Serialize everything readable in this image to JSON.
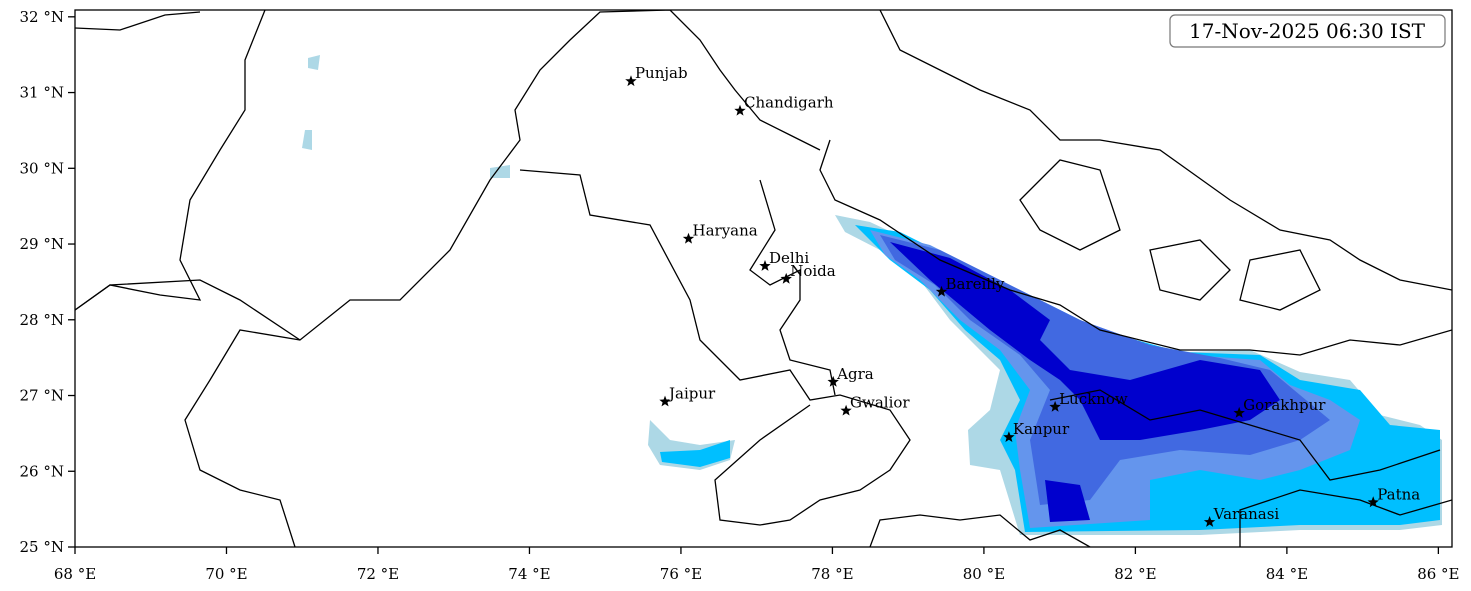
{
  "chart_data": {
    "type": "map",
    "title": "17-Nov-2025 06:30 IST",
    "xlim": [
      68,
      86.18
    ],
    "ylim": [
      25,
      32.09
    ],
    "xticks": [
      {
        "value": 68,
        "label": "68 °E"
      },
      {
        "value": 70,
        "label": "70 °E"
      },
      {
        "value": 72,
        "label": "72 °E"
      },
      {
        "value": 74,
        "label": "74 °E"
      },
      {
        "value": 76,
        "label": "76 °E"
      },
      {
        "value": 78,
        "label": "78 °E"
      },
      {
        "value": 80,
        "label": "80 °E"
      },
      {
        "value": 82,
        "label": "82 °E"
      },
      {
        "value": 84,
        "label": "84 °E"
      },
      {
        "value": 86,
        "label": "86 °E"
      }
    ],
    "yticks": [
      {
        "value": 25,
        "label": "25 °N"
      },
      {
        "value": 26,
        "label": "26 °N"
      },
      {
        "value": 27,
        "label": "27 °N"
      },
      {
        "value": 28,
        "label": "28 °N"
      },
      {
        "value": 29,
        "label": "29 °N"
      },
      {
        "value": 30,
        "label": "30 °N"
      },
      {
        "value": 31,
        "label": "31 °N"
      },
      {
        "value": 32,
        "label": "32 °N"
      }
    ],
    "cities": [
      {
        "name": "Punjab",
        "lon": 75.34,
        "lat": 31.15
      },
      {
        "name": "Chandigarh",
        "lon": 76.78,
        "lat": 30.76
      },
      {
        "name": "Haryana",
        "lon": 76.1,
        "lat": 29.07
      },
      {
        "name": "Delhi",
        "lon": 77.11,
        "lat": 28.71
      },
      {
        "name": "Noida",
        "lon": 77.39,
        "lat": 28.54
      },
      {
        "name": "Bareilly",
        "lon": 79.44,
        "lat": 28.37
      },
      {
        "name": "Agra",
        "lon": 78.01,
        "lat": 27.18
      },
      {
        "name": "Gwalior",
        "lon": 78.18,
        "lat": 26.8
      },
      {
        "name": "Jaipur",
        "lon": 75.79,
        "lat": 26.92
      },
      {
        "name": "Lucknow",
        "lon": 80.94,
        "lat": 26.85
      },
      {
        "name": "Kanpur",
        "lon": 80.33,
        "lat": 26.45
      },
      {
        "name": "Gorakhpur",
        "lon": 83.37,
        "lat": 26.77
      },
      {
        "name": "Varanasi",
        "lon": 82.98,
        "lat": 25.33
      },
      {
        "name": "Patna",
        "lon": 85.14,
        "lat": 25.59
      }
    ]
  }
}
